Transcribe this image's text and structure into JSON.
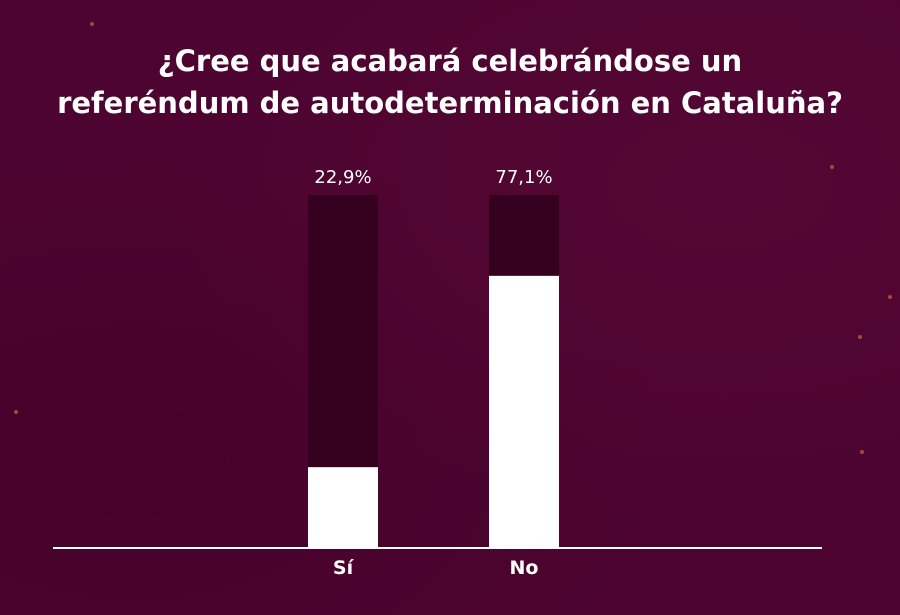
{
  "chart_data": {
    "type": "bar",
    "title_lines": [
      "¿Cree que acabará celebrándose un",
      "referéndum de autodeterminación en Cataluña?"
    ],
    "categories": [
      "Sí",
      "No"
    ],
    "values": [
      22.9,
      77.1
    ],
    "value_labels": [
      "22,9%",
      "77,1%"
    ],
    "ylim": [
      0,
      100
    ],
    "xlabel": "",
    "ylabel": "",
    "grid": false,
    "legend": "none"
  },
  "colors": {
    "background": "#4d0430",
    "bar_fill": "#ffffff",
    "bar_track": "#35011f",
    "axis": "#ffffff",
    "text": "#ffffff"
  }
}
